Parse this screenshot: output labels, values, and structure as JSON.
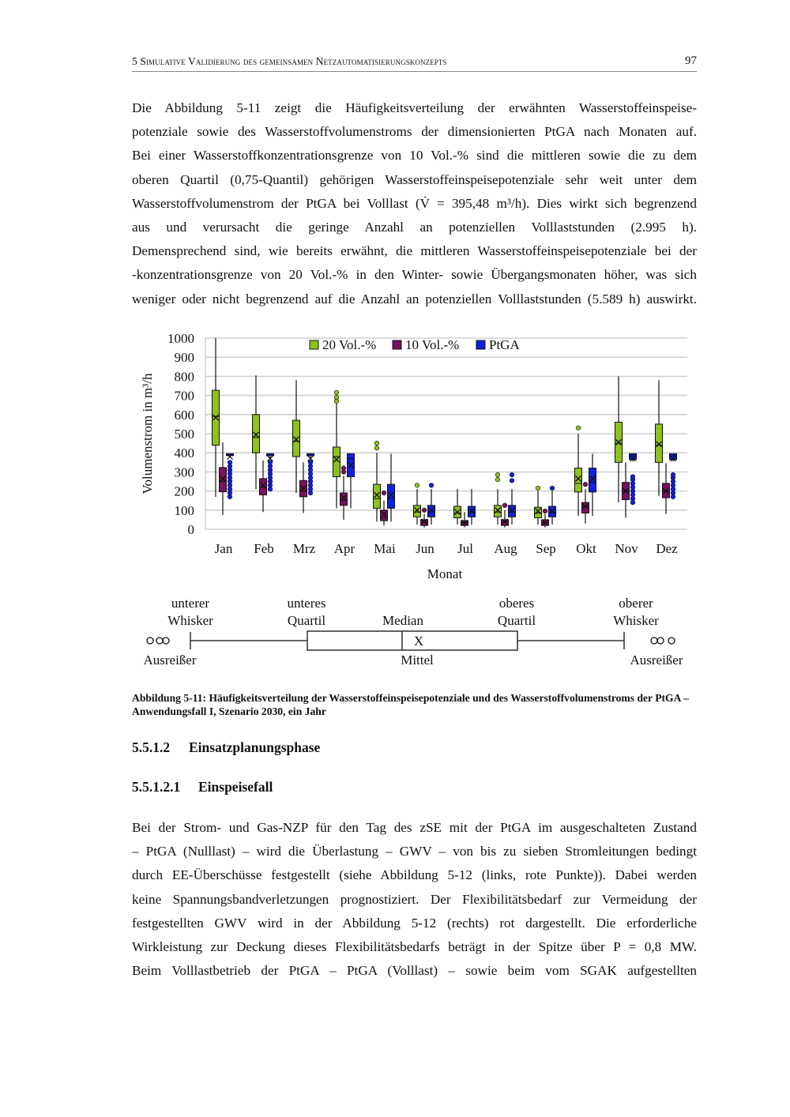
{
  "header": {
    "running_title": "5 Simulative Validierung des gemeinsamen Netzautomatisierungskonzepts",
    "page_number": "97"
  },
  "paragraph1": [
    "Die Abbildung 5-11 zeigt die Häufigkeitsverteilung der erwähnten Wasserstoffeinspeise-",
    "potenziale sowie des Wasserstoffvolumenstroms der dimensionierten PtGA nach Monaten auf.",
    "Bei einer Wasserstoffkonzentrationsgrenze von 10 Vol.-% sind die mittleren sowie die zu dem",
    "oberen Quartil (0,75-Quantil) gehörigen Wasserstoffeinspeisepotenziale sehr weit unter dem",
    "Wasserstoffvolumenstrom der PtGA bei Volllast (V̇ = 395,48 m³/h). Dies wirkt sich begrenzend",
    "aus und verursacht die geringe Anzahl an potenziellen Volllaststunden (2.995 h).",
    "Demensprechend sind, wie bereits erwähnt, die mittleren Wasserstoffeinspeisepotenziale bei der",
    "-konzentrationsgrenze von 20 Vol.-% in den Winter- sowie Übergangsmonaten höher, was sich",
    "weniger oder nicht begrenzend auf die Anzahl an potenziellen Volllaststunden (5.589 h) auswirkt."
  ],
  "chart_data": {
    "type": "boxplot",
    "ylabel": "Volumenstrom in m³/h",
    "xlabel": "Monat",
    "ylim": [
      0,
      1000
    ],
    "yticks": [
      0,
      100,
      200,
      300,
      400,
      500,
      600,
      700,
      800,
      900,
      1000
    ],
    "grid": true,
    "legend_placement": "top-center",
    "categories": [
      "Jan",
      "Feb",
      "Mrz",
      "Apr",
      "Mai",
      "Jun",
      "Jul",
      "Aug",
      "Sep",
      "Okt",
      "Nov",
      "Dez"
    ],
    "series": [
      {
        "name": "20 Vol.-%",
        "color": "#8dc21f",
        "boxes": [
          {
            "low": 170,
            "q1": 440,
            "median": 590,
            "q3": 727,
            "high": 1000,
            "mean": 585,
            "outliers": []
          },
          {
            "low": 210,
            "q1": 400,
            "median": 480,
            "q3": 600,
            "high": 805,
            "mean": 495,
            "outliers": []
          },
          {
            "low": 190,
            "q1": 380,
            "median": 460,
            "q3": 570,
            "high": 780,
            "mean": 470,
            "outliers": []
          },
          {
            "low": 110,
            "q1": 275,
            "median": 380,
            "q3": 430,
            "high": 660,
            "mean": 365,
            "outliers": [
              670,
              690,
              715
            ]
          },
          {
            "low": 40,
            "q1": 110,
            "median": 160,
            "q3": 235,
            "high": 400,
            "mean": 180,
            "outliers": [
              425,
              450
            ]
          },
          {
            "low": 25,
            "q1": 65,
            "median": 90,
            "q3": 125,
            "high": 210,
            "mean": 100,
            "outliers": [
              230
            ]
          },
          {
            "low": 25,
            "q1": 60,
            "median": 85,
            "q3": 120,
            "high": 210,
            "mean": 90,
            "outliers": []
          },
          {
            "low": 25,
            "q1": 65,
            "median": 90,
            "q3": 125,
            "high": 210,
            "mean": 100,
            "outliers": [
              260,
              285
            ]
          },
          {
            "low": 25,
            "q1": 60,
            "median": 85,
            "q3": 115,
            "high": 200,
            "mean": 95,
            "outliers": [
              215
            ]
          },
          {
            "low": 70,
            "q1": 195,
            "median": 240,
            "q3": 320,
            "high": 500,
            "mean": 265,
            "outliers": [
              530
            ]
          },
          {
            "low": 140,
            "q1": 350,
            "median": 450,
            "q3": 560,
            "high": 800,
            "mean": 455,
            "outliers": []
          },
          {
            "low": 175,
            "q1": 350,
            "median": 440,
            "q3": 550,
            "high": 780,
            "mean": 445,
            "outliers": []
          }
        ]
      },
      {
        "name": "10 Vol.-%",
        "color": "#7a1060",
        "boxes": [
          {
            "low": 75,
            "q1": 196,
            "median": 250,
            "q3": 323,
            "high": 455,
            "mean": 265,
            "outliers": []
          },
          {
            "low": 90,
            "q1": 180,
            "median": 220,
            "q3": 265,
            "high": 360,
            "mean": 230,
            "outliers": []
          },
          {
            "low": 85,
            "q1": 170,
            "median": 200,
            "q3": 255,
            "high": 350,
            "mean": 215,
            "outliers": []
          },
          {
            "low": 50,
            "q1": 125,
            "median": 150,
            "q3": 190,
            "high": 280,
            "mean": 165,
            "outliers": [
              300,
              320
            ]
          },
          {
            "low": 20,
            "q1": 45,
            "median": 60,
            "q3": 100,
            "high": 150,
            "mean": 80,
            "outliers": [
              190
            ]
          },
          {
            "low": 10,
            "q1": 20,
            "median": 40,
            "q3": 50,
            "high": 80,
            "mean": 40,
            "outliers": [
              100
            ]
          },
          {
            "low": 10,
            "q1": 20,
            "median": 35,
            "q3": 45,
            "high": 90,
            "mean": 35,
            "outliers": []
          },
          {
            "low": 10,
            "q1": 20,
            "median": 40,
            "q3": 50,
            "high": 100,
            "mean": 40,
            "outliers": [
              125
            ]
          },
          {
            "low": 10,
            "q1": 20,
            "median": 35,
            "q3": 50,
            "high": 80,
            "mean": 35,
            "outliers": [
              95
            ]
          },
          {
            "low": 30,
            "q1": 85,
            "median": 120,
            "q3": 140,
            "high": 210,
            "mean": 120,
            "outliers": [
              235
            ]
          },
          {
            "low": 60,
            "q1": 155,
            "median": 200,
            "q3": 245,
            "high": 350,
            "mean": 200,
            "outliers": []
          },
          {
            "low": 80,
            "q1": 165,
            "median": 200,
            "q3": 240,
            "high": 345,
            "mean": 200,
            "outliers": []
          }
        ]
      },
      {
        "name": "PtGA",
        "color": "#1020e0",
        "boxes": [
          {
            "low": 380,
            "q1": 385,
            "median": 395,
            "q3": 395,
            "high": 395,
            "mean": 380,
            "outliers": [
              170,
              190,
              210,
              230,
              250,
              270,
              290,
              310,
              330,
              350
            ]
          },
          {
            "low": 370,
            "q1": 385,
            "median": 395,
            "q3": 395,
            "high": 395,
            "mean": 370,
            "outliers": [
              210,
              230,
              250,
              270,
              290,
              310,
              330,
              350
            ]
          },
          {
            "low": 370,
            "q1": 385,
            "median": 395,
            "q3": 395,
            "high": 395,
            "mean": 370,
            "outliers": [
              190,
              210,
              230,
              250,
              270,
              290,
              310,
              330,
              350
            ]
          },
          {
            "low": 110,
            "q1": 275,
            "median": 370,
            "q3": 395,
            "high": 395,
            "mean": 335,
            "outliers": []
          },
          {
            "low": 40,
            "q1": 110,
            "median": 160,
            "q3": 235,
            "high": 395,
            "mean": 180,
            "outliers": []
          },
          {
            "low": 25,
            "q1": 65,
            "median": 90,
            "q3": 125,
            "high": 210,
            "mean": 100,
            "outliers": [
              230
            ]
          },
          {
            "low": 25,
            "q1": 65,
            "median": 90,
            "q3": 120,
            "high": 210,
            "mean": 95,
            "outliers": []
          },
          {
            "low": 25,
            "q1": 65,
            "median": 90,
            "q3": 125,
            "high": 210,
            "mean": 100,
            "outliers": [
              255,
              285
            ]
          },
          {
            "low": 25,
            "q1": 65,
            "median": 90,
            "q3": 120,
            "high": 200,
            "mean": 95,
            "outliers": [
              215
            ]
          },
          {
            "low": 70,
            "q1": 195,
            "median": 245,
            "q3": 320,
            "high": 395,
            "mean": 265,
            "outliers": []
          },
          {
            "low": 355,
            "q1": 365,
            "median": 385,
            "q3": 395,
            "high": 395,
            "mean": 370,
            "outliers": [
              140,
              160,
              180,
              200,
              220,
              240,
              260,
              275
            ]
          },
          {
            "low": 355,
            "q1": 365,
            "median": 385,
            "q3": 395,
            "high": 395,
            "mean": 370,
            "outliers": [
              170,
              190,
              210,
              230,
              250,
              270,
              285
            ]
          }
        ]
      }
    ]
  },
  "boxplot_key": {
    "lower_whisker": [
      "unterer",
      "Whisker"
    ],
    "lower_quartile": [
      "unteres",
      "Quartil"
    ],
    "median": "Median",
    "upper_quartile": [
      "oberes",
      "Quartil"
    ],
    "upper_whisker": [
      "oberer",
      "Whisker"
    ],
    "mean_marker": "X",
    "mean": "Mittel",
    "outliers_left": "Ausreißer",
    "outliers_right": "Ausreißer"
  },
  "caption": "Abbildung 5-11: Häufigkeitsverteilung der Wasserstoffeinspeisepotenziale und des Wasserstoffvolumenstroms der PtGA – Anwendungsfall I, Szenario 2030, ein Jahr",
  "heading1": {
    "number": "5.5.1.2",
    "title": "Einsatzplanungsphase"
  },
  "heading2": {
    "number": "5.5.1.2.1",
    "title": "Einspeisefall"
  },
  "paragraph2": [
    "Bei der Strom- und Gas-NZP für den Tag des zSE mit der PtGA im ausgeschalteten Zustand",
    "– PtGA (Nulllast) – wird die Überlastung – GWV – von bis zu sieben Stromleitungen bedingt",
    "durch EE-Überschüsse festgestellt (siehe Abbildung 5-12 (links, rote Punkte)). Dabei werden",
    "keine Spannungsbandverletzungen prognostiziert. Der Flexibilitätsbedarf zur Vermeidung der",
    "festgestellten GWV wird in der Abbildung 5-12 (rechts) rot dargestellt. Die erforderliche",
    "Wirkleistung zur Deckung dieses Flexibilitätsbedarfs beträgt in der Spitze über P = 0,8 MW.",
    "Beim Volllastbetrieb der PtGA – PtGA (Volllast) – sowie beim vom SGAK aufgestellten"
  ]
}
